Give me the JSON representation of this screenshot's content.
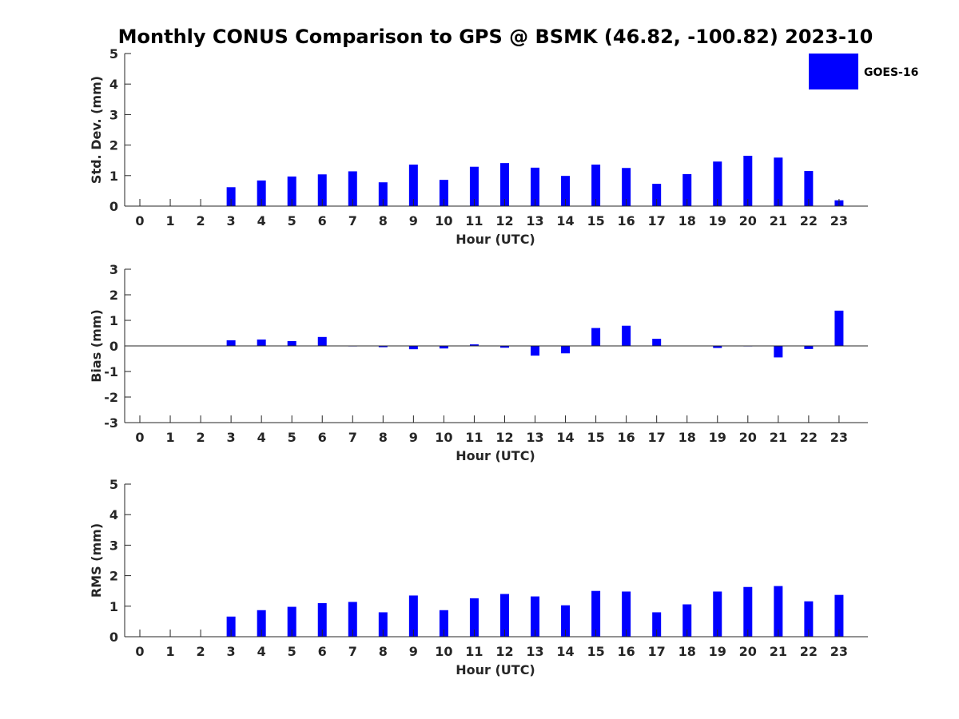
{
  "chart_data": {
    "type": "bar",
    "title": "Monthly CONUS Comparison to GPS @ BSMK (46.82, -100.82) 2023-10",
    "legend": {
      "label": "GOES-16",
      "placement": "top-right"
    },
    "bar_color": "#0000ff",
    "categories": [
      "0",
      "1",
      "2",
      "3",
      "4",
      "5",
      "6",
      "7",
      "8",
      "9",
      "10",
      "11",
      "12",
      "13",
      "14",
      "15",
      "16",
      "17",
      "18",
      "19",
      "20",
      "21",
      "22",
      "23"
    ],
    "panels": [
      {
        "ylabel": "Std. Dev. (mm)",
        "xlabel": "Hour (UTC)",
        "ylim": [
          0,
          5
        ],
        "yticks": [
          "0",
          "1",
          "2",
          "3",
          "4",
          "5"
        ],
        "values": [
          null,
          null,
          null,
          0.62,
          0.84,
          0.97,
          1.04,
          1.14,
          0.78,
          1.36,
          0.86,
          1.29,
          1.41,
          1.26,
          0.99,
          1.36,
          1.25,
          0.73,
          1.05,
          1.46,
          1.65,
          1.59,
          1.15,
          0.19
        ]
      },
      {
        "ylabel": "Bias (mm)",
        "xlabel": "Hour (UTC)",
        "ylim": [
          -3,
          3
        ],
        "yticks": [
          "-3",
          "-2",
          "-1",
          "0",
          "1",
          "2",
          "3"
        ],
        "values": [
          null,
          null,
          null,
          0.22,
          0.25,
          0.19,
          0.35,
          0.0,
          -0.05,
          -0.13,
          -0.1,
          0.06,
          -0.07,
          -0.38,
          -0.29,
          0.7,
          0.79,
          0.28,
          0.01,
          -0.08,
          0.0,
          -0.45,
          -0.12,
          1.38
        ]
      },
      {
        "ylabel": "RMS (mm)",
        "xlabel": "Hour (UTC)",
        "ylim": [
          0,
          5
        ],
        "yticks": [
          "0",
          "1",
          "2",
          "3",
          "4",
          "5"
        ],
        "values": [
          null,
          null,
          null,
          0.66,
          0.87,
          0.98,
          1.1,
          1.14,
          0.8,
          1.35,
          0.87,
          1.26,
          1.4,
          1.32,
          1.03,
          1.5,
          1.48,
          0.8,
          1.06,
          1.48,
          1.63,
          1.66,
          1.16,
          1.37
        ]
      }
    ]
  }
}
